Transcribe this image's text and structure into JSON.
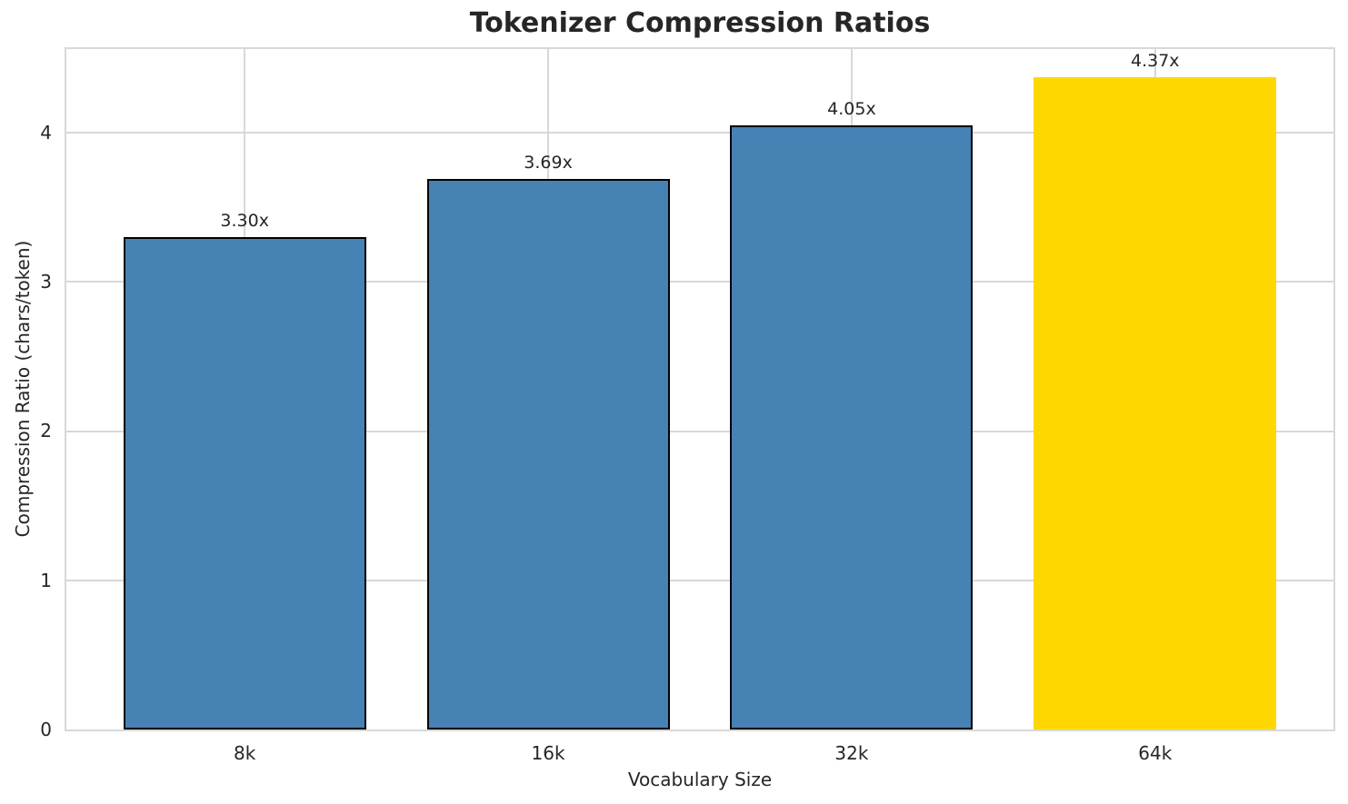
{
  "chart_data": {
    "type": "bar",
    "title": "Tokenizer Compression Ratios",
    "xlabel": "Vocabulary Size",
    "ylabel": "Compression Ratio (chars/token)",
    "categories": [
      "8k",
      "16k",
      "32k",
      "64k"
    ],
    "values": [
      3.3,
      3.69,
      4.05,
      4.37
    ],
    "bar_labels": [
      "3.30x",
      "3.69x",
      "4.05x",
      "4.37x"
    ],
    "bar_colors": [
      "#4682B4",
      "#4682B4",
      "#4682B4",
      "#FFD700"
    ],
    "bar_edge_colors": [
      "#000000",
      "#000000",
      "#000000",
      "none"
    ],
    "yticks": [
      0,
      1,
      2,
      3,
      4
    ],
    "ylim": [
      0,
      4.56
    ],
    "grid": true,
    "legend_position": "none",
    "highlight_category": "64k",
    "colors": {
      "bar": "#4682B4",
      "highlight": "#FFD700",
      "grid": "#d8d8d8",
      "text": "#262626",
      "background": "#ffffff"
    }
  }
}
